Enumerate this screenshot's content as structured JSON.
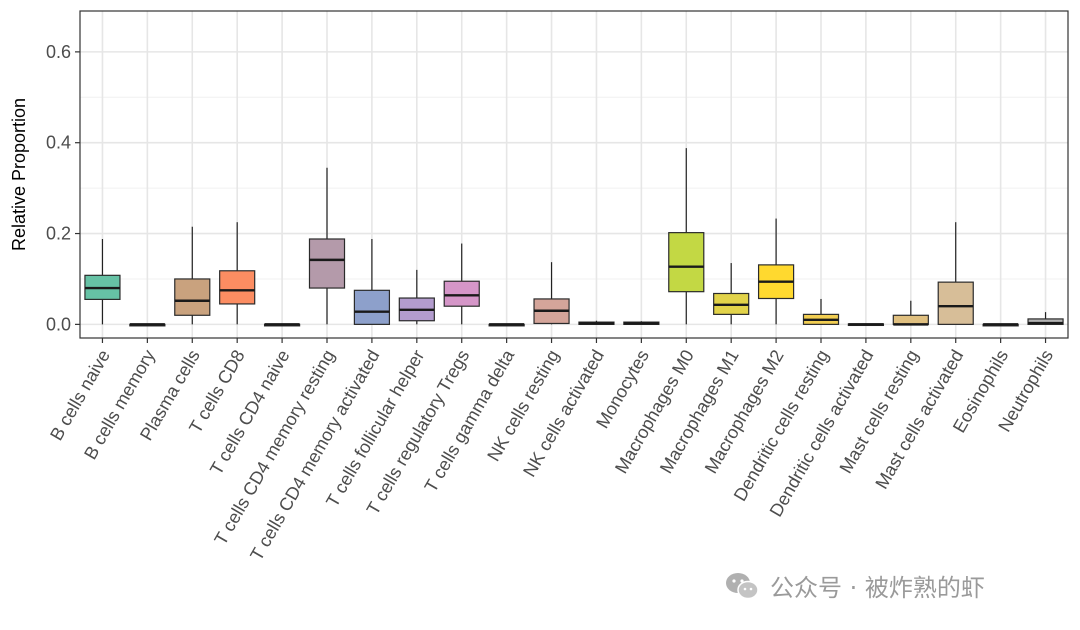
{
  "chart_data": {
    "type": "boxplot",
    "ylabel": "Relative Proportion",
    "ylim": [
      -0.03,
      0.69
    ],
    "yticks": [
      0.0,
      0.2,
      0.4,
      0.6
    ],
    "ytick_labels": [
      "0.0",
      "0.2",
      "0.4",
      "0.6"
    ],
    "grid": true,
    "series": [
      {
        "category": "B cells naive",
        "min": 0.0,
        "q1": 0.055,
        "median": 0.08,
        "q3": 0.108,
        "max": 0.188,
        "color": "#66C2A5"
      },
      {
        "category": "B cells memory",
        "min": 0.0,
        "q1": 0.0,
        "median": 0.0,
        "q3": 0.0,
        "max": 0.0,
        "color": "#6F8FBF"
      },
      {
        "category": "Plasma cells",
        "min": 0.0,
        "q1": 0.02,
        "median": 0.052,
        "q3": 0.1,
        "max": 0.215,
        "color": "#C9A27E"
      },
      {
        "category": "T cells CD8",
        "min": 0.0,
        "q1": 0.045,
        "median": 0.075,
        "q3": 0.118,
        "max": 0.225,
        "color": "#FC8D62"
      },
      {
        "category": "T cells CD4 naive",
        "min": 0.0,
        "q1": 0.0,
        "median": 0.0,
        "q3": 0.0,
        "max": 0.0,
        "color": "#B8A4A0"
      },
      {
        "category": "T cells CD4 memory resting",
        "min": 0.0,
        "q1": 0.08,
        "median": 0.142,
        "q3": 0.188,
        "max": 0.345,
        "color": "#B49AAA"
      },
      {
        "category": "T cells CD4 memory activated",
        "min": 0.0,
        "q1": 0.0,
        "median": 0.028,
        "q3": 0.075,
        "max": 0.188,
        "color": "#8DA0CB"
      },
      {
        "category": "T cells follicular helper",
        "min": 0.0,
        "q1": 0.008,
        "median": 0.032,
        "q3": 0.058,
        "max": 0.12,
        "color": "#B39CCE"
      },
      {
        "category": "T cells regulatory  Tregs",
        "min": 0.0,
        "q1": 0.04,
        "median": 0.064,
        "q3": 0.095,
        "max": 0.178,
        "color": "#D596C8"
      },
      {
        "category": "T cells gamma delta",
        "min": 0.0,
        "q1": 0.0,
        "median": 0.0,
        "q3": 0.0,
        "max": 0.0,
        "color": "#E8A0B4"
      },
      {
        "category": "NK cells resting",
        "min": 0.0,
        "q1": 0.002,
        "median": 0.03,
        "q3": 0.056,
        "max": 0.137,
        "color": "#D4A59A"
      },
      {
        "category": "NK cells activated",
        "min": 0.0,
        "q1": 0.0,
        "median": 0.002,
        "q3": 0.005,
        "max": 0.008,
        "color": "#B0C890"
      },
      {
        "category": "Monocytes",
        "min": 0.0,
        "q1": 0.0,
        "median": 0.002,
        "q3": 0.005,
        "max": 0.007,
        "color": "#B4CF74"
      },
      {
        "category": "Macrophages M0",
        "min": 0.0,
        "q1": 0.072,
        "median": 0.127,
        "q3": 0.202,
        "max": 0.388,
        "color": "#C3D844"
      },
      {
        "category": "Macrophages M1",
        "min": 0.0,
        "q1": 0.022,
        "median": 0.043,
        "q3": 0.068,
        "max": 0.135,
        "color": "#E2D34A"
      },
      {
        "category": "Macrophages M2",
        "min": 0.0,
        "q1": 0.057,
        "median": 0.094,
        "q3": 0.131,
        "max": 0.233,
        "color": "#FFD92F"
      },
      {
        "category": "Dendritic cells resting",
        "min": 0.0,
        "q1": 0.0,
        "median": 0.01,
        "q3": 0.022,
        "max": 0.056,
        "color": "#F2CE52"
      },
      {
        "category": "Dendritic cells activated",
        "min": 0.0,
        "q1": 0.0,
        "median": 0.0,
        "q3": 0.001,
        "max": 0.002,
        "color": "#E8C878"
      },
      {
        "category": "Mast cells resting",
        "min": 0.0,
        "q1": 0.0,
        "median": 0.0,
        "q3": 0.02,
        "max": 0.052,
        "color": "#E0C080"
      },
      {
        "category": "Mast cells activated",
        "min": 0.0,
        "q1": 0.0,
        "median": 0.04,
        "q3": 0.093,
        "max": 0.225,
        "color": "#D7BE98"
      },
      {
        "category": "Eosinophils",
        "min": 0.0,
        "q1": 0.0,
        "median": 0.0,
        "q3": 0.0,
        "max": 0.0,
        "color": "#C8B8A8"
      },
      {
        "category": "Neutrophils",
        "min": 0.0,
        "q1": 0.0,
        "median": 0.003,
        "q3": 0.012,
        "max": 0.027,
        "color": "#B3B3B3"
      }
    ]
  },
  "watermark": {
    "text": "公众号 · 被炸熟的虾",
    "icon": "wechat-icon"
  }
}
